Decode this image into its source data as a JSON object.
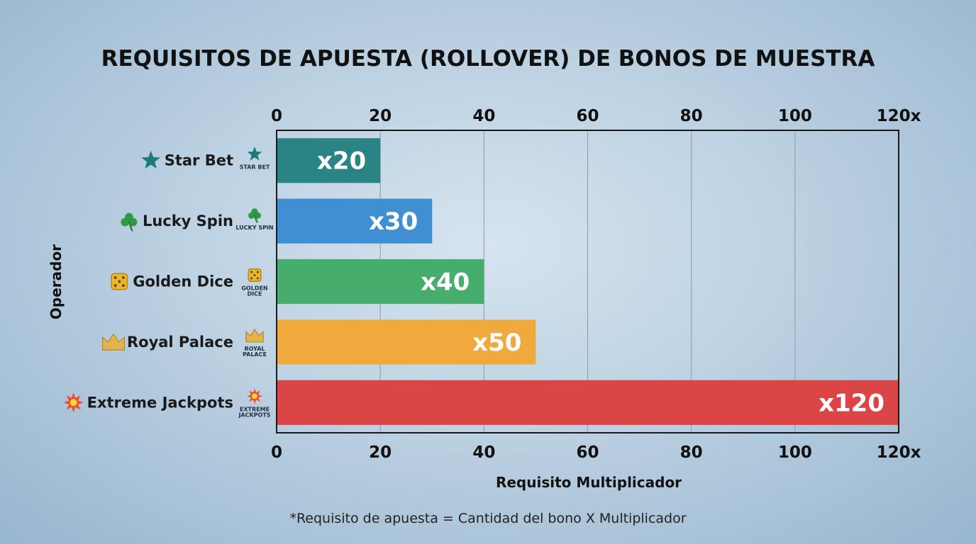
{
  "chart_data": {
    "type": "bar",
    "orientation": "horizontal",
    "title": "REQUISITOS DE APUESTA (ROLLOVER) DE BONOS DE MUESTRA",
    "xlabel": "Requisito Multiplicador",
    "ylabel": "Operador",
    "xlim": [
      0,
      120
    ],
    "x_ticks": [
      "0",
      "20",
      "40",
      "60",
      "80",
      "100",
      "120x"
    ],
    "grid": true,
    "categories": [
      "Star Bet",
      "Lucky Spin",
      "Golden Dice",
      "Royal Palace",
      "Extreme Jackpots"
    ],
    "values": [
      20,
      30,
      40,
      50,
      120
    ],
    "data_labels": [
      "x20",
      "x30",
      "x40",
      "x50",
      "x120"
    ],
    "colors": [
      "#2a8484",
      "#3f8fd2",
      "#46ad6c",
      "#efa93d",
      "#dc4545"
    ],
    "icons": [
      "star-icon",
      "clover-icon",
      "dice-icon",
      "crown-icon",
      "explosion-icon"
    ],
    "logos": [
      {
        "icon": "star-icon",
        "text": [
          "STAR BET"
        ]
      },
      {
        "icon": "clover-icon",
        "text": [
          "LUCKY SPIN"
        ]
      },
      {
        "icon": "dice-icon",
        "text": [
          "GOLDEN",
          "DICE"
        ]
      },
      {
        "icon": "crown-icon",
        "text": [
          "ROYAL",
          "PALACE"
        ]
      },
      {
        "icon": "explosion-icon",
        "text": [
          "EXTREME",
          "JACKPOTS"
        ]
      }
    ],
    "footnote": "*Requisito de apuesta = Cantidad del bono X Multiplicador"
  }
}
